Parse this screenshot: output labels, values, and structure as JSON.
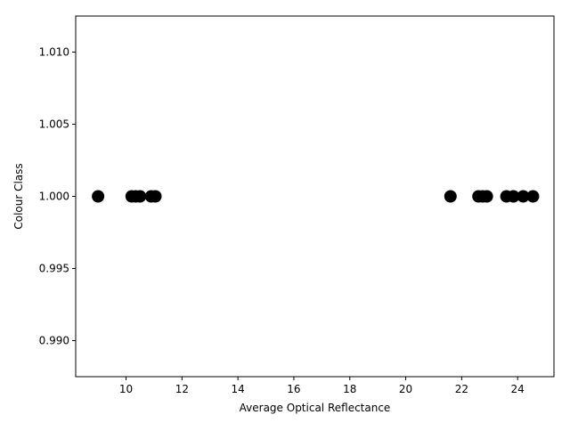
{
  "chart_data": {
    "type": "scatter",
    "title": "",
    "xlabel": "Average Optical Reflectance",
    "ylabel": "Colour Class",
    "xlim": [
      8.2,
      25.3
    ],
    "ylim": [
      0.9875,
      1.0125
    ],
    "xticks": [
      10,
      12,
      14,
      16,
      18,
      20,
      22,
      24
    ],
    "yticks": [
      0.99,
      0.995,
      1.0,
      1.005,
      1.01
    ],
    "xtick_labels": [
      "10",
      "12",
      "14",
      "16",
      "18",
      "20",
      "22",
      "24"
    ],
    "ytick_labels": [
      "0.990",
      "0.995",
      "1.000",
      "1.005",
      "1.010"
    ],
    "grid": false,
    "series": [
      {
        "color": "#000000",
        "points": [
          {
            "x": 9.0,
            "y": 1.0
          },
          {
            "x": 10.2,
            "y": 1.0
          },
          {
            "x": 10.35,
            "y": 1.0
          },
          {
            "x": 10.5,
            "y": 1.0
          },
          {
            "x": 10.9,
            "y": 1.0
          },
          {
            "x": 11.05,
            "y": 1.0
          },
          {
            "x": 21.6,
            "y": 1.0
          },
          {
            "x": 22.6,
            "y": 1.0
          },
          {
            "x": 22.75,
            "y": 1.0
          },
          {
            "x": 22.9,
            "y": 1.0
          },
          {
            "x": 23.6,
            "y": 1.0
          },
          {
            "x": 23.85,
            "y": 1.0
          },
          {
            "x": 24.2,
            "y": 1.0
          },
          {
            "x": 24.55,
            "y": 1.0
          }
        ]
      }
    ]
  }
}
